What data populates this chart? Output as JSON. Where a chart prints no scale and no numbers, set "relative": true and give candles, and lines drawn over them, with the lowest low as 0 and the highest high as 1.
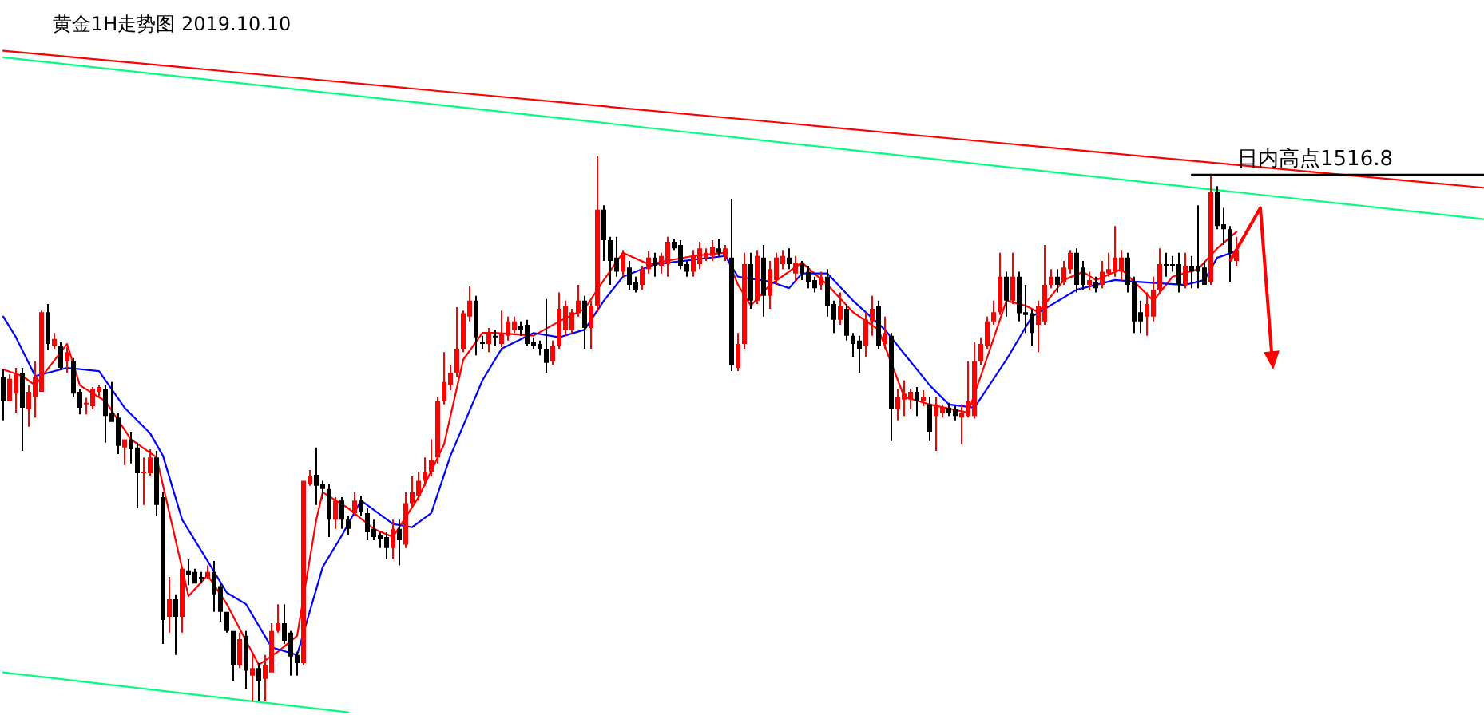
{
  "chart_data": {
    "type": "candlestick",
    "title": "黄金1H走势图 2019.10.10",
    "relative": true,
    "categories": [
      null,
      null,
      null,
      null,
      null,
      null,
      null,
      null,
      null,
      null,
      null,
      null,
      null,
      null,
      null,
      null,
      null,
      null,
      null,
      null,
      null,
      null,
      null,
      null,
      null,
      null,
      null,
      null,
      null,
      null,
      null,
      null,
      null,
      null,
      null,
      null,
      null,
      null,
      null,
      null,
      null,
      null,
      null,
      null,
      null,
      null,
      null,
      null,
      null,
      null,
      null,
      null,
      null,
      null,
      null,
      null,
      null,
      null,
      null,
      null,
      null,
      null,
      null,
      null,
      null,
      null,
      null,
      null,
      null,
      null,
      null,
      null,
      null,
      null,
      null,
      null,
      null,
      null,
      null,
      null,
      null,
      null,
      null,
      null,
      null,
      null,
      null,
      null,
      null,
      null,
      null,
      null,
      null,
      null,
      null,
      null,
      null,
      null,
      null,
      null,
      null,
      null,
      null,
      null,
      null,
      null,
      null,
      null,
      null,
      null,
      null,
      null,
      null,
      null,
      null,
      null,
      null,
      null,
      null,
      null,
      null,
      null,
      null,
      null,
      null,
      null,
      null,
      null,
      null,
      null,
      null,
      null,
      null,
      null,
      null,
      null,
      null,
      null,
      null,
      null,
      null,
      null,
      null,
      null,
      null,
      null,
      null,
      null,
      null,
      null,
      null,
      null,
      null,
      null,
      null,
      null,
      null,
      null,
      null,
      null,
      null,
      null,
      null,
      null,
      null,
      null,
      null,
      null,
      null,
      null,
      null,
      null,
      null,
      null,
      null,
      null,
      null,
      null,
      null,
      null,
      null,
      null,
      null,
      null,
      null,
      null,
      null,
      null,
      null,
      null,
      null,
      null,
      null,
      null
    ],
    "ohlc": [
      [
        0.594,
        0.608,
        0.515,
        0.55
      ],
      [
        0.55,
        0.599,
        0.55,
        0.591
      ],
      [
        0.564,
        0.611,
        0.529,
        0.599
      ],
      [
        0.602,
        0.611,
        0.459,
        0.538
      ],
      [
        0.535,
        0.579,
        0.503,
        0.567
      ],
      [
        0.558,
        0.623,
        0.52,
        0.594
      ],
      [
        0.567,
        0.716,
        0.567,
        0.713
      ],
      [
        0.713,
        0.728,
        0.643,
        0.655
      ],
      [
        0.652,
        0.675,
        0.646,
        0.664
      ],
      [
        0.652,
        0.658,
        0.608,
        0.611
      ],
      [
        0.623,
        0.649,
        0.602,
        0.64
      ],
      [
        0.623,
        0.629,
        0.558,
        0.564
      ],
      [
        0.567,
        0.573,
        0.526,
        0.538
      ],
      [
        0.544,
        0.556,
        0.526,
        0.547
      ],
      [
        0.541,
        0.576,
        0.535,
        0.573
      ],
      [
        0.567,
        0.579,
        0.558,
        0.576
      ],
      [
        0.573,
        0.579,
        0.474,
        0.523
      ],
      [
        0.529,
        0.585,
        0.512,
        0.512
      ],
      [
        0.52,
        0.529,
        0.453,
        0.468
      ],
      [
        0.465,
        0.48,
        0.433,
        0.48
      ],
      [
        0.48,
        0.494,
        0.436,
        0.462
      ],
      [
        0.465,
        0.474,
        0.354,
        0.418
      ],
      [
        0.418,
        0.447,
        0.36,
        0.421
      ],
      [
        0.418,
        0.462,
        0.412,
        0.447
      ],
      [
        0.447,
        0.459,
        0.339,
        0.36
      ],
      [
        0.374,
        0.383,
        0.105,
        0.149
      ],
      [
        0.155,
        0.228,
        0.126,
        0.187
      ],
      [
        0.187,
        0.196,
        0.085,
        0.155
      ],
      [
        0.155,
        0.243,
        0.126,
        0.243
      ],
      [
        0.24,
        0.26,
        0.213,
        0.231
      ],
      [
        0.237,
        0.243,
        0.216,
        0.216
      ],
      [
        0.228,
        0.237,
        0.216,
        0.225
      ],
      [
        0.228,
        0.249,
        0.225,
        0.237
      ],
      [
        0.237,
        0.257,
        0.164,
        0.196
      ],
      [
        0.211,
        0.216,
        0.146,
        0.164
      ],
      [
        0.164,
        0.164,
        0.126,
        0.129
      ],
      [
        0.129,
        0.129,
        0.038,
        0.067
      ],
      [
        0.067,
        0.126,
        0.061,
        0.114
      ],
      [
        0.12,
        0.129,
        0.023,
        0.056
      ],
      [
        0.047,
        0.091,
        0,
        0.061
      ],
      [
        0.061,
        0.07,
        0,
        0.038
      ],
      [
        0.041,
        0.085,
        0,
        0.067
      ],
      [
        0.053,
        0.143,
        0.053,
        0.129
      ],
      [
        0.129,
        0.178,
        0.126,
        0.143
      ],
      [
        0.143,
        0.178,
        0.105,
        0.111
      ],
      [
        0.126,
        0.129,
        0.047,
        0.082
      ],
      [
        0.085,
        0.091,
        0.047,
        0.07
      ],
      [
        0.07,
        0.404,
        0.067,
        0.404
      ],
      [
        0.398,
        0.424,
        0.395,
        0.412
      ],
      [
        0.415,
        0.465,
        0.36,
        0.395
      ],
      [
        0.398,
        0.404,
        0.371,
        0.389
      ],
      [
        0.389,
        0.398,
        0.301,
        0.333
      ],
      [
        0.333,
        0.374,
        0.316,
        0.368
      ],
      [
        0.368,
        0.374,
        0.316,
        0.333
      ],
      [
        0.333,
        0.339,
        0.304,
        0.316
      ],
      [
        0.345,
        0.383,
        0.339,
        0.368
      ],
      [
        0.368,
        0.377,
        0.339,
        0.348
      ],
      [
        0.345,
        0.354,
        0.295,
        0.31
      ],
      [
        0.316,
        0.333,
        0.295,
        0.301
      ],
      [
        0.304,
        0.31,
        0.281,
        0.298
      ],
      [
        0.301,
        0.31,
        0.26,
        0.281
      ],
      [
        0.281,
        0.333,
        0.26,
        0.316
      ],
      [
        0.316,
        0.333,
        0.249,
        0.295
      ],
      [
        0.287,
        0.383,
        0.281,
        0.363
      ],
      [
        0.363,
        0.412,
        0.354,
        0.383
      ],
      [
        0.377,
        0.421,
        0.368,
        0.404
      ],
      [
        0.404,
        0.447,
        0.395,
        0.421
      ],
      [
        0.421,
        0.48,
        0.412,
        0.442
      ],
      [
        0.447,
        0.558,
        0.436,
        0.55
      ],
      [
        0.55,
        0.64,
        0.544,
        0.585
      ],
      [
        0.579,
        0.617,
        0.57,
        0.602
      ],
      [
        0.602,
        0.722,
        0.594,
        0.646
      ],
      [
        0.646,
        0.716,
        0.64,
        0.711
      ],
      [
        0.705,
        0.76,
        0.696,
        0.734
      ],
      [
        0.734,
        0.743,
        0.634,
        0.667
      ],
      [
        0.658,
        0.67,
        0.646,
        0.655
      ],
      [
        0.655,
        0.684,
        0.64,
        0.675
      ],
      [
        0.67,
        0.681,
        0.652,
        0.667
      ],
      [
        0.655,
        0.716,
        0.649,
        0.675
      ],
      [
        0.67,
        0.705,
        0.661,
        0.696
      ],
      [
        0.681,
        0.705,
        0.675,
        0.696
      ],
      [
        0.687,
        0.696,
        0.67,
        0.681
      ],
      [
        0.69,
        0.699,
        0.652,
        0.655
      ],
      [
        0.658,
        0.667,
        0.646,
        0.652
      ],
      [
        0.655,
        0.661,
        0.634,
        0.646
      ],
      [
        0.646,
        0.737,
        0.602,
        0.62
      ],
      [
        0.623,
        0.661,
        0.617,
        0.652
      ],
      [
        0.652,
        0.749,
        0.646,
        0.719
      ],
      [
        0.681,
        0.734,
        0.67,
        0.725
      ],
      [
        0.681,
        0.719,
        0.675,
        0.713
      ],
      [
        0.711,
        0.763,
        0.705,
        0.734
      ],
      [
        0.734,
        0.743,
        0.646,
        0.684
      ],
      [
        0.684,
        0.734,
        0.646,
        0.725
      ],
      [
        0.725,
        1,
        0.713,
        0.901
      ],
      [
        0.901,
        0.909,
        0.807,
        0.845
      ],
      [
        0.845,
        0.851,
        0.763,
        0.807
      ],
      [
        0.813,
        0.851,
        0.778,
        0.787
      ],
      [
        0.787,
        0.827,
        0.778,
        0.822
      ],
      [
        0.795,
        0.807,
        0.754,
        0.763
      ],
      [
        0.769,
        0.778,
        0.749,
        0.754
      ],
      [
        0.763,
        0.798,
        0.754,
        0.792
      ],
      [
        0.792,
        0.825,
        0.784,
        0.813
      ],
      [
        0.813,
        0.822,
        0.778,
        0.798
      ],
      [
        0.798,
        0.822,
        0.784,
        0.816
      ],
      [
        0.801,
        0.851,
        0.778,
        0.842
      ],
      [
        0.842,
        0.848,
        0.827,
        0.83
      ],
      [
        0.836,
        0.845,
        0.792,
        0.798
      ],
      [
        0.801,
        0.807,
        0.778,
        0.787
      ],
      [
        0.787,
        0.827,
        0.778,
        0.816
      ],
      [
        0.801,
        0.842,
        0.792,
        0.83
      ],
      [
        0.813,
        0.83,
        0.807,
        0.822
      ],
      [
        0.816,
        0.845,
        0.807,
        0.833
      ],
      [
        0.83,
        0.848,
        0.816,
        0.822
      ],
      [
        0.816,
        0.836,
        0.807,
        0.83
      ],
      [
        0.813,
        0.921,
        0.605,
        0.617
      ],
      [
        0.611,
        0.675,
        0.605,
        0.655
      ],
      [
        0.655,
        0.822,
        0.646,
        0.801
      ],
      [
        0.801,
        0.822,
        0.719,
        0.734
      ],
      [
        0.734,
        0.827,
        0.728,
        0.816
      ],
      [
        0.813,
        0.836,
        0.705,
        0.743
      ],
      [
        0.743,
        0.807,
        0.719,
        0.792
      ],
      [
        0.772,
        0.822,
        0.763,
        0.813
      ],
      [
        0.801,
        0.827,
        0.792,
        0.816
      ],
      [
        0.813,
        0.83,
        0.792,
        0.801
      ],
      [
        0.784,
        0.816,
        0.769,
        0.804
      ],
      [
        0.801,
        0.807,
        0.772,
        0.784
      ],
      [
        0.787,
        0.798,
        0.757,
        0.769
      ],
      [
        0.772,
        0.778,
        0.749,
        0.757
      ],
      [
        0.763,
        0.787,
        0.754,
        0.778
      ],
      [
        0.778,
        0.792,
        0.705,
        0.725
      ],
      [
        0.728,
        0.734,
        0.675,
        0.699
      ],
      [
        0.699,
        0.749,
        0.69,
        0.725
      ],
      [
        0.719,
        0.728,
        0.661,
        0.67
      ],
      [
        0.67,
        0.675,
        0.631,
        0.655
      ],
      [
        0.661,
        0.67,
        0.602,
        0.646
      ],
      [
        0.652,
        0.713,
        0.631,
        0.699
      ],
      [
        0.696,
        0.743,
        0.67,
        0.719
      ],
      [
        0.725,
        0.734,
        0.646,
        0.652
      ],
      [
        0.655,
        0.705,
        0.646,
        0.675
      ],
      [
        0.67,
        0.675,
        0.477,
        0.535
      ],
      [
        0.535,
        0.573,
        0.515,
        0.558
      ],
      [
        0.553,
        0.588,
        0.523,
        0.564
      ],
      [
        0.553,
        0.573,
        0.535,
        0.567
      ],
      [
        0.567,
        0.576,
        0.523,
        0.55
      ],
      [
        0.55,
        0.57,
        0.541,
        0.558
      ],
      [
        0.544,
        0.558,
        0.477,
        0.494
      ],
      [
        0.523,
        0.558,
        0.459,
        0.544
      ],
      [
        0.529,
        0.544,
        0.52,
        0.538
      ],
      [
        0.538,
        0.547,
        0.523,
        0.529
      ],
      [
        0.535,
        0.541,
        0.515,
        0.523
      ],
      [
        0.52,
        0.544,
        0.471,
        0.529
      ],
      [
        0.523,
        0.623,
        0.52,
        0.55
      ],
      [
        0.523,
        0.658,
        0.518,
        0.623
      ],
      [
        0.623,
        0.667,
        0.617,
        0.655
      ],
      [
        0.652,
        0.705,
        0.646,
        0.696
      ],
      [
        0.696,
        0.734,
        0.69,
        0.713
      ],
      [
        0.713,
        0.822,
        0.708,
        0.778
      ],
      [
        0.778,
        0.787,
        0.705,
        0.734
      ],
      [
        0.734,
        0.822,
        0.728,
        0.778
      ],
      [
        0.778,
        0.787,
        0.696,
        0.711
      ],
      [
        0.713,
        0.763,
        0.675,
        0.708
      ],
      [
        0.711,
        0.719,
        0.652,
        0.675
      ],
      [
        0.69,
        0.734,
        0.64,
        0.725
      ],
      [
        0.696,
        0.836,
        0.69,
        0.763
      ],
      [
        0.763,
        0.792,
        0.757,
        0.778
      ],
      [
        0.778,
        0.792,
        0.749,
        0.763
      ],
      [
        0.769,
        0.807,
        0.763,
        0.795
      ],
      [
        0.792,
        0.827,
        0.784,
        0.822
      ],
      [
        0.822,
        0.83,
        0.749,
        0.763
      ],
      [
        0.795,
        0.807,
        0.754,
        0.763
      ],
      [
        0.763,
        0.787,
        0.754,
        0.772
      ],
      [
        0.769,
        0.778,
        0.749,
        0.757
      ],
      [
        0.763,
        0.807,
        0.757,
        0.787
      ],
      [
        0.784,
        0.822,
        0.778,
        0.792
      ],
      [
        0.787,
        0.871,
        0.778,
        0.813
      ],
      [
        0.787,
        0.827,
        0.772,
        0.813
      ],
      [
        0.813,
        0.822,
        0.749,
        0.763
      ],
      [
        0.769,
        0.778,
        0.675,
        0.696
      ],
      [
        0.713,
        0.734,
        0.675,
        0.696
      ],
      [
        0.705,
        0.749,
        0.67,
        0.728
      ],
      [
        0.705,
        0.778,
        0.696,
        0.754
      ],
      [
        0.754,
        0.83,
        0.749,
        0.801
      ],
      [
        0.801,
        0.822,
        0.778,
        0.798
      ],
      [
        0.801,
        0.816,
        0.787,
        0.798
      ],
      [
        0.801,
        0.822,
        0.749,
        0.763
      ],
      [
        0.763,
        0.822,
        0.757,
        0.798
      ],
      [
        0.798,
        0.816,
        0.757,
        0.787
      ],
      [
        0.798,
        0.909,
        0.757,
        0.787
      ],
      [
        0.795,
        0.807,
        0.763,
        0.763
      ],
      [
        0.769,
        0.962,
        0.763,
        0.933
      ],
      [
        0.933,
        0.944,
        0.865,
        0.871
      ],
      [
        0.874,
        0.904,
        0.836,
        0.865
      ],
      [
        0.865,
        0.871,
        0.769,
        0.822
      ],
      [
        0.807,
        0.851,
        0.798,
        0.827
      ]
    ],
    "series": [
      {
        "type": "line",
        "color": "#ff0000",
        "values": [
          1.192,
          null,
          null,
          null,
          null,
          null,
          null,
          null,
          null,
          null,
          null,
          null,
          null,
          null,
          null,
          null,
          null,
          null,
          null,
          null,
          null,
          null,
          null,
          null,
          null,
          null,
          null,
          null,
          null,
          null,
          null,
          null,
          null,
          null,
          null,
          null,
          null,
          null,
          null,
          null,
          null,
          null,
          null,
          null,
          null,
          null,
          null,
          null,
          null,
          null,
          null,
          null,
          null,
          null,
          null,
          null,
          null,
          null,
          null,
          null,
          null,
          null,
          null,
          null,
          null,
          null,
          null,
          null,
          null,
          null,
          null,
          null,
          null,
          null,
          null,
          null,
          null,
          null,
          null,
          null,
          null,
          null,
          null,
          null,
          null,
          null,
          null,
          null,
          null,
          null,
          null,
          null,
          null,
          null,
          null,
          null,
          null,
          null,
          null,
          null,
          null,
          null,
          null,
          null,
          null,
          null,
          null,
          null,
          null,
          null,
          null,
          null,
          null,
          null,
          null,
          null,
          null,
          null,
          null,
          null,
          null,
          null,
          null,
          null,
          null,
          null,
          null,
          null,
          null,
          null,
          null,
          null,
          null,
          null,
          null,
          null,
          null,
          null,
          null,
          null,
          null,
          null,
          null,
          null,
          null,
          null,
          null,
          null,
          null,
          null,
          null,
          null,
          null,
          null,
          null,
          null,
          null,
          null,
          null,
          null,
          null,
          null,
          null,
          null,
          null,
          null,
          null,
          null,
          null,
          null,
          null,
          null,
          null,
          null,
          null,
          null,
          null,
          null,
          null,
          null,
          null,
          null,
          null,
          null,
          null,
          null,
          null,
          null,
          null,
          null,
          null,
          null,
          null,
          0.983
        ]
      },
      {
        "type": "line",
        "color": "#00ff7f",
        "values": [
          1.18,
          null,
          null,
          null,
          null,
          null,
          null,
          null,
          null,
          null,
          null,
          null,
          null,
          null,
          null,
          null,
          null,
          null,
          null,
          null,
          null,
          null,
          null,
          null,
          null,
          null,
          null,
          null,
          null,
          null,
          null,
          null,
          null,
          null,
          null,
          null,
          null,
          null,
          null,
          null,
          null,
          null,
          null,
          null,
          null,
          null,
          null,
          null,
          null,
          null,
          null,
          null,
          null,
          null,
          null,
          null,
          null,
          null,
          null,
          null,
          null,
          null,
          null,
          null,
          null,
          null,
          null,
          null,
          null,
          null,
          null,
          null,
          null,
          null,
          null,
          null,
          null,
          null,
          null,
          null,
          null,
          null,
          null,
          null,
          null,
          null,
          null,
          null,
          null,
          null,
          null,
          null,
          null,
          null,
          null,
          null,
          null,
          null,
          null,
          null,
          null,
          null,
          null,
          null,
          null,
          null,
          null,
          null,
          null,
          null,
          null,
          null,
          null,
          null,
          null,
          null,
          null,
          null,
          null,
          null,
          null,
          null,
          null,
          null,
          null,
          null,
          null,
          null,
          null,
          null,
          null,
          null,
          null,
          null,
          null,
          null,
          null,
          null,
          null,
          null,
          null,
          null,
          null,
          null,
          null,
          null,
          null,
          null,
          null,
          null,
          null,
          null,
          null,
          null,
          null,
          null,
          null,
          null,
          null,
          null,
          null,
          null,
          null,
          null,
          null,
          null,
          null,
          null,
          null,
          null,
          null,
          null,
          null,
          null,
          null,
          null,
          null,
          null,
          null,
          null,
          null,
          null,
          null,
          null,
          null,
          null,
          null,
          null,
          null,
          null,
          null,
          null,
          null,
          0.933
        ]
      },
      {
        "type": "line",
        "color": "#00ff7f",
        "values": [
          0.053,
          null,
          null,
          null,
          null,
          null,
          null,
          null,
          null,
          null,
          null,
          null,
          null,
          null,
          null,
          null,
          null,
          null,
          null,
          null,
          null,
          null,
          null,
          null,
          null,
          null,
          null,
          null,
          null,
          null,
          null,
          null,
          null,
          null,
          null,
          null,
          null,
          null,
          null,
          null,
          null,
          null,
          null,
          null,
          null,
          null,
          null,
          null,
          null,
          null,
          null,
          null,
          null,
          null,
          -0.02,
          null,
          null,
          null,
          null,
          null,
          null,
          null,
          null,
          null,
          null,
          null,
          null,
          null,
          null,
          null,
          null,
          null,
          null,
          null,
          null,
          null,
          null,
          null,
          null,
          null,
          null,
          null,
          null,
          null,
          null,
          null,
          null,
          null,
          null,
          null,
          null,
          null,
          null,
          null,
          null,
          null,
          null,
          null,
          null,
          null,
          null,
          null,
          null,
          null,
          null,
          null,
          null,
          null,
          null,
          null,
          null,
          null,
          null,
          null,
          null,
          null,
          null,
          null,
          null,
          null,
          null,
          null,
          null,
          null,
          null,
          null,
          null,
          null,
          null,
          null,
          null,
          null,
          null,
          null,
          null,
          null,
          null,
          null,
          null,
          null,
          null,
          null,
          null,
          null,
          null,
          null,
          null,
          null,
          null,
          null,
          null,
          null,
          null,
          null,
          null,
          null,
          null,
          null,
          null,
          null,
          null,
          null,
          null,
          null,
          null,
          null,
          null,
          null,
          null,
          null,
          null,
          null,
          null,
          null,
          null,
          null,
          null,
          null,
          null,
          null,
          null,
          null,
          null,
          null,
          null,
          null,
          null,
          null,
          null,
          null,
          null,
          null,
          null,
          null
        ]
      },
      {
        "type": "line",
        "color": "#ff0000",
        "values": [
          0.608,
          null,
          null,
          0.596,
          null,
          0.579,
          null,
          null,
          null,
          null,
          0.655,
          null,
          0.579,
          null,
          null,
          null,
          0.55,
          null,
          null,
          null,
          0.48,
          null,
          null,
          null,
          0.447,
          null,
          null,
          null,
          null,
          0.193,
          null,
          null,
          0.231,
          null,
          null,
          0.178,
          null,
          null,
          0.111,
          null,
          0.067,
          null,
          null,
          0.091,
          null,
          null,
          0.12,
          null,
          null,
          0.333,
          0.383,
          null,
          null,
          null,
          0.354,
          null,
          null,
          null,
          0.316,
          null,
          null,
          0.301,
          null,
          null,
          null,
          0.374,
          null,
          null,
          null,
          0.471,
          null,
          null,
          0.626,
          null,
          null,
          0.675,
          null,
          0.675,
          null,
          null,
          null,
          null,
          null,
          0.67,
          null,
          null,
          null,
          0.696,
          null,
          null,
          null,
          0.719,
          null,
          null,
          0.772,
          null,
          null,
          0.822,
          null,
          null,
          null,
          0.801,
          null,
          null,
          null,
          null,
          null,
          null,
          0.816,
          null,
          null,
          null,
          null,
          0.822,
          null,
          0.763,
          null,
          0.725,
          null,
          null,
          0.763,
          null,
          null,
          null,
          null,
          0.804,
          null,
          null,
          null,
          0.763,
          null,
          null,
          null,
          0.713,
          null,
          null,
          null,
          0.681,
          null,
          null,
          null,
          0.558,
          null,
          null,
          null,
          0.544,
          null,
          null,
          null,
          null,
          null,
          0.529,
          null,
          0.596,
          null,
          null,
          null,
          0.734,
          null,
          null,
          0.725,
          null,
          0.713,
          null,
          null,
          null,
          0.772,
          null,
          null,
          0.787,
          null,
          0.772,
          null,
          null,
          null,
          0.792,
          null,
          null,
          null,
          null,
          0.734,
          null,
          null,
          0.778,
          null,
          null,
          null,
          0.792,
          null,
          null,
          0.83,
          null,
          null,
          0.86
        ]
      },
      {
        "type": "line",
        "color": "#0000ff",
        "values": [
          0.705,
          null,
          0.667,
          null,
          null,
          0.596,
          null,
          null,
          null,
          null,
          0.611,
          null,
          null,
          null,
          null,
          0.605,
          null,
          null,
          null,
          0.538,
          null,
          null,
          null,
          0.491,
          null,
          0.45,
          null,
          null,
          0.333,
          null,
          null,
          null,
          0.257,
          null,
          null,
          0.199,
          null,
          null,
          0.178,
          null,
          null,
          null,
          0.099,
          null,
          null,
          null,
          0.085,
          null,
          null,
          null,
          0.246,
          null,
          null,
          0.304,
          null,
          null,
          0.368,
          null,
          null,
          null,
          null,
          0.325,
          null,
          null,
          0.319,
          null,
          null,
          0.345,
          null,
          null,
          0.45,
          null,
          null,
          null,
          null,
          0.588,
          null,
          null,
          0.646,
          null,
          null,
          null,
          null,
          0.675,
          null,
          null,
          null,
          0.667,
          null,
          null,
          null,
          0.681,
          null,
          null,
          0.734,
          null,
          null,
          0.778,
          null,
          null,
          null,
          null,
          0.801,
          null,
          null,
          null,
          null,
          null,
          null,
          null,
          null,
          null,
          null,
          0.816,
          null,
          0.778,
          null,
          null,
          null,
          null,
          0.769,
          null,
          null,
          0.757,
          null,
          0.784,
          null,
          null,
          null,
          0.784,
          null,
          null,
          null,
          0.734,
          null,
          null,
          null,
          null,
          0.681,
          null,
          null,
          0.637,
          null,
          null,
          null,
          0.579,
          null,
          null,
          0.544,
          null,
          null,
          null,
          0.538,
          null,
          null,
          null,
          null,
          0.626,
          null,
          null,
          null,
          0.705,
          null,
          null,
          null,
          null,
          null,
          null,
          0.754,
          null,
          null,
          null,
          null,
          null,
          0.772,
          null,
          null,
          0.769,
          null,
          null,
          null,
          null,
          null,
          null,
          null,
          0.763,
          null,
          null,
          0.772,
          null,
          0.813,
          null,
          null,
          0.825
        ]
      },
      {
        "type": "line",
        "color": "#000000",
        "values": [
          null,
          null,
          null,
          null,
          null,
          null,
          null,
          null,
          null,
          null,
          null,
          null,
          null,
          null,
          null,
          null,
          null,
          null,
          null,
          null,
          null,
          null,
          null,
          null,
          null,
          null,
          null,
          null,
          null,
          null,
          null,
          null,
          null,
          null,
          null,
          null,
          null,
          null,
          null,
          null,
          null,
          null,
          null,
          null,
          null,
          null,
          null,
          null,
          null,
          null,
          null,
          null,
          null,
          null,
          null,
          null,
          null,
          null,
          null,
          null,
          null,
          null,
          null,
          null,
          null,
          null,
          null,
          null,
          null,
          null,
          null,
          null,
          null,
          null,
          null,
          null,
          null,
          null,
          null,
          null,
          null,
          null,
          null,
          null,
          null,
          null,
          null,
          null,
          null,
          null,
          null,
          null,
          null,
          null,
          null,
          null,
          null,
          null,
          null,
          null,
          null,
          null,
          null,
          null,
          null,
          null,
          null,
          null,
          null,
          null,
          null,
          null,
          null,
          null,
          null,
          null,
          null,
          null,
          null,
          null,
          null,
          null,
          null,
          null,
          null,
          null,
          null,
          null,
          null,
          null,
          null,
          null,
          null,
          null,
          null,
          null,
          null,
          null,
          null,
          null,
          null,
          null,
          null,
          null,
          null,
          null,
          null,
          null,
          null,
          null,
          null,
          null,
          null,
          null,
          null,
          null,
          null,
          null,
          null,
          null,
          null,
          null,
          null,
          null,
          null,
          null,
          null,
          null,
          null,
          null,
          null,
          null,
          null,
          null,
          null,
          null,
          null,
          null,
          null,
          null,
          null,
          null,
          null,
          null,
          null,
          null,
          0.965,
          null,
          null,
          null,
          null,
          null,
          null,
          0.965
        ]
      }
    ],
    "annotations": [
      {
        "text": "日内高点1516.8",
        "y": 0.965
      }
    ]
  }
}
